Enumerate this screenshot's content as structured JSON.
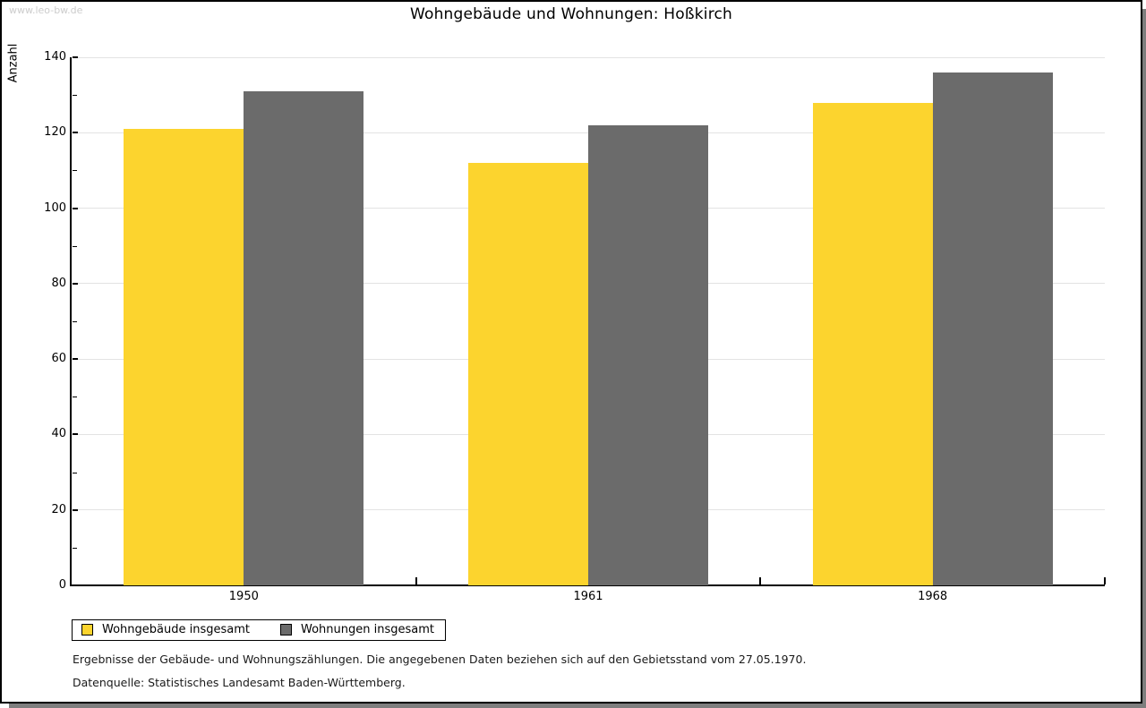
{
  "watermark": "www.leo-bw.de",
  "title": "Wohngebäude und Wohnungen: Hoßkirch",
  "chart_data": {
    "type": "bar",
    "title": "Wohngebäude und Wohnungen: Hoßkirch",
    "categories": [
      "1950",
      "1961",
      "1968"
    ],
    "series": [
      {
        "name": "Wohngebäude insgesamt",
        "color": "#fcd42e",
        "values": [
          121,
          112,
          128
        ]
      },
      {
        "name": "Wohnungen insgesamt",
        "color": "#6b6b6b",
        "values": [
          131,
          122,
          136
        ]
      }
    ],
    "xlabel": "",
    "ylabel": "Anzahl",
    "ylim": [
      0,
      140
    ],
    "ytick_step": 20,
    "yminor_step": 10,
    "grid": true,
    "legend_position": "bottom-left"
  },
  "footer": {
    "line1": "Ergebnisse der Gebäude- und Wohnungszählungen. Die angegebenen Daten beziehen sich auf den Gebietsstand vom 27.05.1970.",
    "line2": "Datenquelle: Statistisches Landesamt Baden-Württemberg."
  }
}
